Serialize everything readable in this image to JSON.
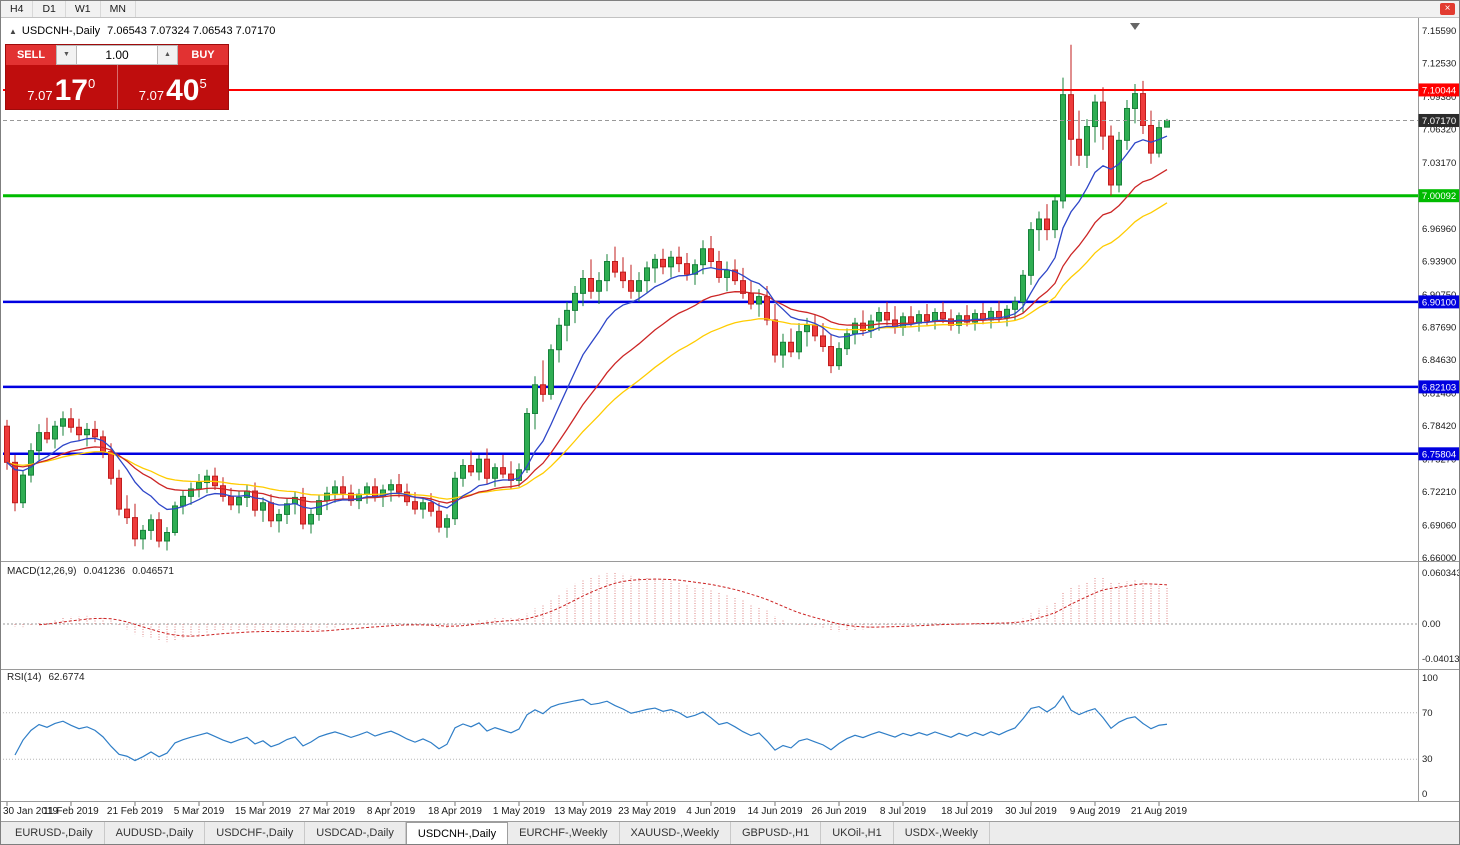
{
  "window": {
    "close_glyph": "×"
  },
  "toolbar": {
    "timeframes": [
      "H4",
      "D1",
      "W1",
      "MN"
    ]
  },
  "chart": {
    "title": "USDCNH-,Daily",
    "ohlc": "7.06543 7.07324 7.06543 7.07170",
    "collapse_glyph": "▲"
  },
  "trade_panel": {
    "sell_label": "SELL",
    "buy_label": "BUY",
    "volume": "1.00",
    "spin_down_glyph": "▼",
    "spin_up_glyph": "▲",
    "sell_price": {
      "prefix": "7.07",
      "main": "17",
      "sup": "0"
    },
    "buy_price": {
      "prefix": "7.07",
      "main": "40",
      "sup": "5"
    }
  },
  "macd": {
    "label": "MACD(12,26,9)",
    "value_main": "0.041236",
    "value_signal": "0.046571",
    "axis_top": "0.060343",
    "axis_zero": "0.00",
    "axis_bottom": "-0.040136"
  },
  "rsi": {
    "label": "RSI(14)",
    "value": "62.6774",
    "axis": [
      "100",
      "70",
      "30",
      "0"
    ]
  },
  "price_axis": {
    "labels": [
      "7.15590",
      "7.12530",
      "7.09380",
      "7.06320",
      "7.03170",
      "6.96960",
      "6.93900",
      "6.90750",
      "6.87690",
      "6.84630",
      "6.81480",
      "6.78420",
      "6.75270",
      "6.72210",
      "6.69060",
      "6.66000"
    ]
  },
  "current_price": {
    "label": "7.07170",
    "price": 7.0717,
    "tag_color": "#2b2b2b"
  },
  "tabs": [
    {
      "label": "EURUSD-,Daily",
      "active": false
    },
    {
      "label": "AUDUSD-,Daily",
      "active": false
    },
    {
      "label": "USDCHF-,Daily",
      "active": false
    },
    {
      "label": "USDCAD-,Daily",
      "active": false
    },
    {
      "label": "USDCNH-,Daily",
      "active": true
    },
    {
      "label": "EURCHF-,Weekly",
      "active": false
    },
    {
      "label": "XAUUSD-,Weekly",
      "active": false
    },
    {
      "label": "GBPUSD-,H1",
      "active": false
    },
    {
      "label": "UKOil-,H1",
      "active": false
    },
    {
      "label": "USDX-,Weekly",
      "active": false
    }
  ],
  "chart_data": {
    "type": "candlestick",
    "symbol": "USDCNH",
    "period": "Daily",
    "y_range": [
      6.66,
      7.1559
    ],
    "colors": {
      "up": "#2fae53",
      "up_border": "#17813a",
      "down": "#ee3b3b",
      "down_border": "#c01d1d",
      "ma_fast": "#2e46c8",
      "ma_mid": "#cc2626",
      "ma_slow": "#ffcc00",
      "macd_hist": "#dd8282",
      "macd_signal": "#cc2222",
      "rsi_line": "#2f7ec7"
    },
    "levels": [
      {
        "price": 7.10044,
        "label": "7.10044",
        "color": "#ff0000",
        "width": 2
      },
      {
        "price": 7.00092,
        "label": "7.00092",
        "color": "#00bb00",
        "width": 3
      },
      {
        "price": 6.901,
        "label": "6.90100",
        "color": "#0000e0",
        "width": 2.5
      },
      {
        "price": 6.82103,
        "label": "6.82103",
        "color": "#0000e0",
        "width": 2.5
      },
      {
        "price": 6.75804,
        "label": "6.75804",
        "color": "#0000e0",
        "width": 2.5
      }
    ],
    "indicators": {
      "moving_averages": [
        {
          "type": "ema",
          "period": 10
        },
        {
          "type": "ema",
          "period": 21
        },
        {
          "type": "ema",
          "period": 34
        }
      ],
      "macd": {
        "fast": 12,
        "slow": 26,
        "signal": 9,
        "current_main": 0.041236,
        "current_signal": 0.046571
      },
      "rsi": {
        "period": 14,
        "current": 62.6774
      }
    },
    "x_ticks": [
      {
        "i": 0,
        "label": "30 Jan 2019"
      },
      {
        "i": 8,
        "label": "11 Feb 2019"
      },
      {
        "i": 16,
        "label": "21 Feb 2019"
      },
      {
        "i": 24,
        "label": "5 Mar 2019"
      },
      {
        "i": 32,
        "label": "15 Mar 2019"
      },
      {
        "i": 40,
        "label": "27 Mar 2019"
      },
      {
        "i": 48,
        "label": "8 Apr 2019"
      },
      {
        "i": 56,
        "label": "18 Apr 2019"
      },
      {
        "i": 64,
        "label": "1 May 2019"
      },
      {
        "i": 72,
        "label": "13 May 2019"
      },
      {
        "i": 80,
        "label": "23 May 2019"
      },
      {
        "i": 88,
        "label": "4 Jun 2019"
      },
      {
        "i": 96,
        "label": "14 Jun 2019"
      },
      {
        "i": 104,
        "label": "26 Jun 2019"
      },
      {
        "i": 112,
        "label": "8 Jul 2019"
      },
      {
        "i": 120,
        "label": "18 Jul 2019"
      },
      {
        "i": 128,
        "label": "30 Jul 2019"
      },
      {
        "i": 136,
        "label": "9 Aug 2019"
      },
      {
        "i": 144,
        "label": "21 Aug 2019"
      }
    ],
    "ohlc": [
      [
        6.784,
        6.79,
        6.743,
        6.75
      ],
      [
        6.75,
        6.757,
        6.704,
        6.712
      ],
      [
        6.712,
        6.742,
        6.707,
        6.738
      ],
      [
        6.738,
        6.768,
        6.731,
        6.761
      ],
      [
        6.761,
        6.786,
        6.752,
        6.778
      ],
      [
        6.778,
        6.792,
        6.768,
        6.772
      ],
      [
        6.772,
        6.789,
        6.763,
        6.784
      ],
      [
        6.784,
        6.798,
        6.775,
        6.791
      ],
      [
        6.791,
        6.801,
        6.778,
        6.783
      ],
      [
        6.783,
        6.791,
        6.77,
        6.776
      ],
      [
        6.776,
        6.787,
        6.765,
        6.781
      ],
      [
        6.781,
        6.789,
        6.769,
        6.774
      ],
      [
        6.774,
        6.78,
        6.754,
        6.76
      ],
      [
        6.76,
        6.768,
        6.729,
        6.735
      ],
      [
        6.735,
        6.743,
        6.7,
        6.706
      ],
      [
        6.706,
        6.719,
        6.692,
        6.698
      ],
      [
        6.698,
        6.711,
        6.671,
        6.678
      ],
      [
        6.678,
        6.691,
        6.668,
        6.686
      ],
      [
        6.686,
        6.701,
        6.677,
        6.696
      ],
      [
        6.696,
        6.703,
        6.67,
        6.676
      ],
      [
        6.676,
        6.689,
        6.667,
        6.684
      ],
      [
        6.684,
        6.713,
        6.681,
        6.709
      ],
      [
        6.709,
        6.723,
        6.701,
        6.718
      ],
      [
        6.718,
        6.731,
        6.71,
        6.725
      ],
      [
        6.725,
        6.739,
        6.717,
        6.731
      ],
      [
        6.731,
        6.743,
        6.721,
        6.737
      ],
      [
        6.737,
        6.745,
        6.724,
        6.728
      ],
      [
        6.728,
        6.736,
        6.713,
        6.718
      ],
      [
        6.718,
        6.726,
        6.705,
        6.71
      ],
      [
        6.71,
        6.723,
        6.702,
        6.717
      ],
      [
        6.717,
        6.729,
        6.708,
        6.723
      ],
      [
        6.723,
        6.731,
        6.699,
        6.705
      ],
      [
        6.705,
        6.717,
        6.694,
        6.712
      ],
      [
        6.712,
        6.72,
        6.689,
        6.695
      ],
      [
        6.695,
        6.706,
        6.684,
        6.701
      ],
      [
        6.701,
        6.716,
        6.692,
        6.711
      ],
      [
        6.711,
        6.723,
        6.701,
        6.717
      ],
      [
        6.717,
        6.726,
        6.687,
        6.692
      ],
      [
        6.692,
        6.706,
        6.683,
        6.701
      ],
      [
        6.701,
        6.719,
        6.695,
        6.714
      ],
      [
        6.714,
        6.727,
        6.705,
        6.721
      ],
      [
        6.721,
        6.733,
        6.712,
        6.727
      ],
      [
        6.727,
        6.737,
        6.715,
        6.721
      ],
      [
        6.721,
        6.729,
        6.709,
        6.714
      ],
      [
        6.714,
        6.725,
        6.706,
        6.72
      ],
      [
        6.72,
        6.731,
        6.711,
        6.727
      ],
      [
        6.727,
        6.735,
        6.713,
        6.718
      ],
      [
        6.718,
        6.729,
        6.708,
        6.724
      ],
      [
        6.724,
        6.734,
        6.713,
        6.729
      ],
      [
        6.729,
        6.739,
        6.717,
        6.722
      ],
      [
        6.722,
        6.73,
        6.709,
        6.713
      ],
      [
        6.713,
        6.722,
        6.701,
        6.706
      ],
      [
        6.706,
        6.717,
        6.697,
        6.712
      ],
      [
        6.712,
        6.721,
        6.699,
        6.704
      ],
      [
        6.704,
        6.712,
        6.684,
        6.689
      ],
      [
        6.689,
        6.701,
        6.679,
        6.697
      ],
      [
        6.697,
        6.741,
        6.691,
        6.735
      ],
      [
        6.735,
        6.753,
        6.727,
        6.747
      ],
      [
        6.747,
        6.761,
        6.737,
        6.741
      ],
      [
        6.741,
        6.757,
        6.733,
        6.753
      ],
      [
        6.753,
        6.763,
        6.729,
        6.735
      ],
      [
        6.735,
        6.749,
        6.727,
        6.745
      ],
      [
        6.745,
        6.757,
        6.735,
        6.739
      ],
      [
        6.739,
        6.751,
        6.725,
        6.733
      ],
      [
        6.733,
        6.749,
        6.727,
        6.743
      ],
      [
        6.743,
        6.801,
        6.74,
        6.796
      ],
      [
        6.796,
        6.831,
        6.781,
        6.823
      ],
      [
        6.823,
        6.846,
        6.807,
        6.814
      ],
      [
        6.814,
        6.861,
        6.809,
        6.856
      ],
      [
        6.856,
        6.886,
        6.844,
        6.879
      ],
      [
        6.879,
        6.901,
        6.864,
        6.893
      ],
      [
        6.893,
        6.916,
        6.881,
        6.909
      ],
      [
        6.909,
        6.931,
        6.897,
        6.923
      ],
      [
        6.923,
        6.941,
        6.904,
        6.911
      ],
      [
        6.911,
        6.929,
        6.899,
        6.921
      ],
      [
        6.921,
        6.946,
        6.911,
        6.939
      ],
      [
        6.939,
        6.953,
        6.924,
        6.929
      ],
      [
        6.929,
        6.943,
        6.914,
        6.921
      ],
      [
        6.921,
        6.936,
        6.904,
        6.911
      ],
      [
        6.911,
        6.929,
        6.901,
        6.921
      ],
      [
        6.921,
        6.939,
        6.909,
        6.933
      ],
      [
        6.933,
        6.946,
        6.919,
        6.941
      ],
      [
        6.941,
        6.951,
        6.927,
        6.934
      ],
      [
        6.934,
        6.949,
        6.924,
        6.943
      ],
      [
        6.943,
        6.953,
        6.929,
        6.937
      ],
      [
        6.937,
        6.947,
        6.921,
        6.927
      ],
      [
        6.927,
        6.941,
        6.917,
        6.936
      ],
      [
        6.936,
        6.959,
        6.927,
        6.951
      ],
      [
        6.951,
        6.963,
        6.934,
        6.939
      ],
      [
        6.939,
        6.949,
        6.919,
        6.924
      ],
      [
        6.924,
        6.939,
        6.911,
        6.931
      ],
      [
        6.931,
        6.941,
        6.917,
        6.921
      ],
      [
        6.921,
        6.933,
        6.904,
        6.909
      ],
      [
        6.909,
        6.921,
        6.894,
        6.899
      ],
      [
        6.899,
        6.913,
        6.887,
        6.906
      ],
      [
        6.906,
        6.916,
        6.879,
        6.884
      ],
      [
        6.884,
        6.899,
        6.844,
        6.851
      ],
      [
        6.851,
        6.871,
        6.839,
        6.863
      ],
      [
        6.863,
        6.876,
        6.849,
        6.854
      ],
      [
        6.854,
        6.881,
        6.847,
        6.873
      ],
      [
        6.873,
        6.886,
        6.859,
        6.879
      ],
      [
        6.879,
        6.889,
        6.864,
        6.869
      ],
      [
        6.869,
        6.881,
        6.854,
        6.859
      ],
      [
        6.859,
        6.871,
        6.834,
        6.841
      ],
      [
        6.841,
        6.863,
        6.837,
        6.857
      ],
      [
        6.857,
        6.876,
        6.851,
        6.871
      ],
      [
        6.871,
        6.886,
        6.861,
        6.881
      ],
      [
        6.881,
        6.893,
        6.869,
        6.874
      ],
      [
        6.874,
        6.889,
        6.867,
        6.883
      ],
      [
        6.883,
        6.896,
        6.874,
        6.891
      ],
      [
        6.891,
        6.901,
        6.879,
        6.884
      ],
      [
        6.884,
        6.897,
        6.871,
        6.877
      ],
      [
        6.877,
        6.891,
        6.869,
        6.887
      ],
      [
        6.887,
        6.897,
        6.877,
        6.881
      ],
      [
        6.881,
        6.893,
        6.873,
        6.889
      ],
      [
        6.889,
        6.899,
        6.879,
        6.883
      ],
      [
        6.883,
        6.895,
        6.875,
        6.891
      ],
      [
        6.891,
        6.901,
        6.881,
        6.885
      ],
      [
        6.885,
        6.894,
        6.874,
        6.879
      ],
      [
        6.879,
        6.891,
        6.871,
        6.888
      ],
      [
        6.888,
        6.898,
        6.878,
        6.882
      ],
      [
        6.882,
        6.894,
        6.874,
        6.89
      ],
      [
        6.89,
        6.9,
        6.88,
        6.884
      ],
      [
        6.884,
        6.896,
        6.876,
        6.892
      ],
      [
        6.892,
        6.902,
        6.882,
        6.886
      ],
      [
        6.886,
        6.898,
        6.878,
        6.894
      ],
      [
        6.894,
        6.906,
        6.884,
        6.901
      ],
      [
        6.901,
        6.931,
        6.891,
        6.926
      ],
      [
        6.926,
        6.976,
        6.917,
        6.969
      ],
      [
        6.969,
        6.986,
        6.949,
        6.979
      ],
      [
        6.979,
        6.993,
        6.959,
        6.969
      ],
      [
        6.969,
        7.001,
        6.961,
        6.996
      ],
      [
        6.996,
        7.112,
        6.989,
        7.096
      ],
      [
        7.096,
        7.143,
        7.029,
        7.054
      ],
      [
        7.054,
        7.081,
        7.029,
        7.039
      ],
      [
        7.039,
        7.073,
        7.027,
        7.066
      ],
      [
        7.066,
        7.096,
        7.051,
        7.089
      ],
      [
        7.089,
        7.103,
        7.044,
        7.057
      ],
      [
        7.057,
        7.067,
        7.001,
        7.011
      ],
      [
        7.011,
        7.061,
        7.004,
        7.053
      ],
      [
        7.053,
        7.091,
        7.044,
        7.083
      ],
      [
        7.083,
        7.106,
        7.069,
        7.097
      ],
      [
        7.097,
        7.109,
        7.059,
        7.067
      ],
      [
        7.067,
        7.081,
        7.031,
        7.041
      ],
      [
        7.041,
        7.071,
        7.037,
        7.065
      ],
      [
        7.06543,
        7.07324,
        7.06543,
        7.0717
      ]
    ]
  }
}
